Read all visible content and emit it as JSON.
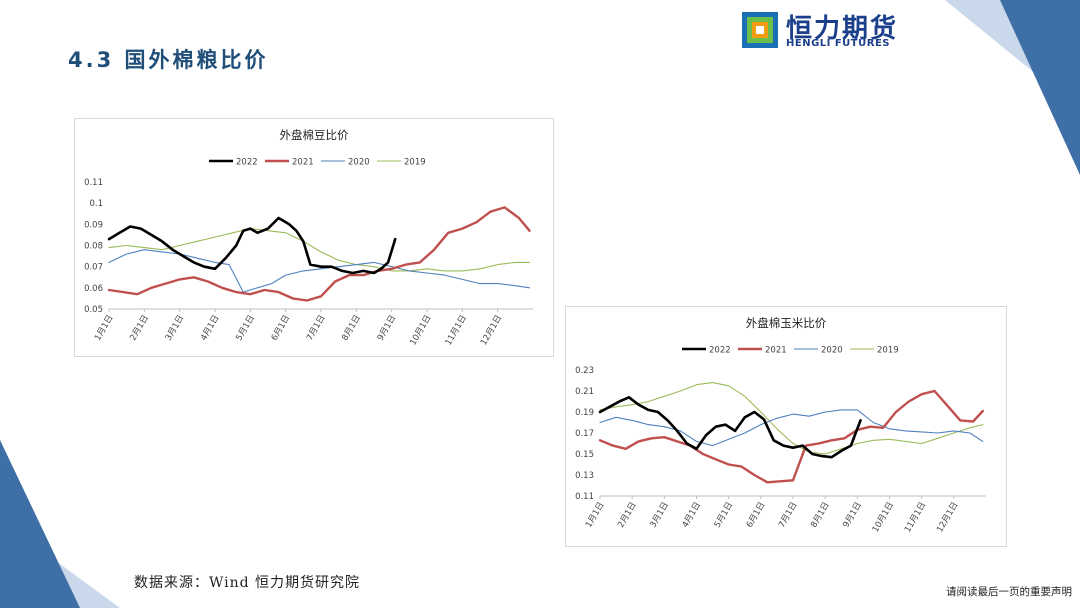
{
  "header": {
    "section_title": "4.3 国外棉粮比价",
    "logo_cn": "恒力期货",
    "logo_en": "HENGLI FUTURES"
  },
  "colors": {
    "brand_blue": "#1f4e79",
    "decor_blue": "#3e6fa6",
    "decor_light": "#c9d8ea",
    "series_2022": "#000000",
    "series_2021": "#c0504d",
    "series_2020": "#4f81bd",
    "series_2019": "#9bbb59"
  },
  "chart_data": [
    {
      "type": "line",
      "title": "外盘棉豆比价",
      "x_ticks": [
        "1月1日",
        "2月1日",
        "3月1日",
        "4月1日",
        "5月1日",
        "6月1日",
        "7月1日",
        "8月1日",
        "9月1日",
        "10月1日",
        "11月1日",
        "12月1日"
      ],
      "y_ticks": [
        "0.11",
        "0.1",
        "0.09",
        "0.08",
        "0.07",
        "0.06",
        "0.05"
      ],
      "ylim": [
        0.05,
        0.11
      ],
      "legend_position": "top",
      "x_unit": "month",
      "series": [
        {
          "name": "2022",
          "color": "#000000",
          "width": 2.6,
          "x": [
            0,
            0.3,
            0.6,
            0.9,
            1.2,
            1.5,
            1.8,
            2.1,
            2.4,
            2.7,
            3.0,
            3.3,
            3.6,
            3.8,
            4.0,
            4.2,
            4.5,
            4.8,
            5.1,
            5.3,
            5.5,
            5.7,
            6.0,
            6.3,
            6.6,
            6.9,
            7.2,
            7.5,
            7.7,
            7.9,
            8.1
          ],
          "y": [
            0.083,
            0.086,
            0.089,
            0.088,
            0.085,
            0.082,
            0.078,
            0.075,
            0.072,
            0.07,
            0.069,
            0.074,
            0.08,
            0.087,
            0.088,
            0.086,
            0.088,
            0.093,
            0.09,
            0.087,
            0.082,
            0.071,
            0.07,
            0.07,
            0.068,
            0.067,
            0.068,
            0.067,
            0.069,
            0.072,
            0.083
          ]
        },
        {
          "name": "2021",
          "color": "#c0504d",
          "width": 2.4,
          "x": [
            0,
            0.4,
            0.8,
            1.2,
            1.6,
            2.0,
            2.4,
            2.8,
            3.2,
            3.6,
            4.0,
            4.4,
            4.8,
            5.2,
            5.6,
            6.0,
            6.4,
            6.8,
            7.2,
            7.6,
            8.0,
            8.4,
            8.8,
            9.2,
            9.6,
            10.0,
            10.4,
            10.8,
            11.2,
            11.6,
            11.9
          ],
          "y": [
            0.059,
            0.058,
            0.057,
            0.06,
            0.062,
            0.064,
            0.065,
            0.063,
            0.06,
            0.058,
            0.057,
            0.059,
            0.058,
            0.055,
            0.054,
            0.056,
            0.063,
            0.066,
            0.066,
            0.068,
            0.069,
            0.071,
            0.072,
            0.078,
            0.086,
            0.088,
            0.091,
            0.096,
            0.098,
            0.093,
            0.087
          ]
        },
        {
          "name": "2020",
          "color": "#4f81bd",
          "width": 1.1,
          "x": [
            0,
            0.5,
            1.0,
            1.5,
            2.0,
            2.5,
            3.0,
            3.4,
            3.8,
            4.2,
            4.6,
            5.0,
            5.5,
            6.0,
            6.5,
            7.0,
            7.5,
            8.0,
            8.5,
            9.0,
            9.5,
            10.0,
            10.5,
            11.0,
            11.5,
            11.9
          ],
          "y": [
            0.072,
            0.076,
            0.078,
            0.077,
            0.076,
            0.074,
            0.072,
            0.071,
            0.058,
            0.06,
            0.062,
            0.066,
            0.068,
            0.069,
            0.07,
            0.071,
            0.072,
            0.07,
            0.068,
            0.067,
            0.066,
            0.064,
            0.062,
            0.062,
            0.061,
            0.06
          ]
        },
        {
          "name": "2019",
          "color": "#9bbb59",
          "width": 1.1,
          "x": [
            0,
            0.5,
            1.0,
            1.5,
            2.0,
            2.5,
            3.0,
            3.5,
            4.0,
            4.5,
            5.0,
            5.5,
            6.0,
            6.5,
            7.0,
            7.5,
            8.0,
            8.5,
            9.0,
            9.5,
            10.0,
            10.5,
            11.0,
            11.5,
            11.9
          ],
          "y": [
            0.079,
            0.08,
            0.079,
            0.078,
            0.08,
            0.082,
            0.084,
            0.086,
            0.088,
            0.087,
            0.086,
            0.082,
            0.077,
            0.073,
            0.071,
            0.07,
            0.068,
            0.068,
            0.069,
            0.068,
            0.068,
            0.069,
            0.071,
            0.072,
            0.072
          ]
        }
      ]
    },
    {
      "type": "line",
      "title": "外盘棉玉米比价",
      "x_ticks": [
        "1月1日",
        "2月1日",
        "3月1日",
        "4月1日",
        "5月1日",
        "6月1日",
        "7月1日",
        "8月1日",
        "9月1日",
        "10月1日",
        "11月1日",
        "12月1日"
      ],
      "y_ticks": [
        "0.23",
        "0.21",
        "0.19",
        "0.17",
        "0.15",
        "0.13",
        "0.11"
      ],
      "ylim": [
        0.11,
        0.23
      ],
      "legend_position": "top",
      "x_unit": "month",
      "series": [
        {
          "name": "2022",
          "color": "#000000",
          "width": 2.6,
          "x": [
            0,
            0.3,
            0.6,
            0.9,
            1.2,
            1.5,
            1.8,
            2.1,
            2.4,
            2.7,
            3.0,
            3.3,
            3.6,
            3.9,
            4.2,
            4.5,
            4.8,
            5.1,
            5.4,
            5.7,
            6.0,
            6.3,
            6.6,
            6.9,
            7.2,
            7.5,
            7.8,
            8.1
          ],
          "y": [
            0.19,
            0.195,
            0.2,
            0.204,
            0.197,
            0.192,
            0.19,
            0.182,
            0.172,
            0.16,
            0.155,
            0.168,
            0.176,
            0.178,
            0.172,
            0.185,
            0.19,
            0.183,
            0.163,
            0.158,
            0.156,
            0.158,
            0.15,
            0.148,
            0.147,
            0.153,
            0.158,
            0.182
          ]
        },
        {
          "name": "2021",
          "color": "#c0504d",
          "width": 2.4,
          "x": [
            0,
            0.4,
            0.8,
            1.2,
            1.6,
            2.0,
            2.4,
            2.8,
            3.2,
            3.6,
            4.0,
            4.4,
            4.8,
            5.2,
            5.6,
            6.0,
            6.4,
            6.8,
            7.2,
            7.6,
            8.0,
            8.4,
            8.8,
            9.2,
            9.6,
            10.0,
            10.4,
            10.8,
            11.2,
            11.6,
            11.9
          ],
          "y": [
            0.163,
            0.158,
            0.155,
            0.162,
            0.165,
            0.166,
            0.162,
            0.158,
            0.15,
            0.145,
            0.14,
            0.138,
            0.13,
            0.123,
            0.124,
            0.125,
            0.158,
            0.16,
            0.163,
            0.165,
            0.173,
            0.176,
            0.175,
            0.19,
            0.2,
            0.207,
            0.21,
            0.196,
            0.182,
            0.181,
            0.191
          ]
        },
        {
          "name": "2020",
          "color": "#4f81bd",
          "width": 1.1,
          "x": [
            0,
            0.5,
            1.0,
            1.5,
            2.0,
            2.5,
            3.0,
            3.5,
            4.0,
            4.5,
            5.0,
            5.5,
            6.0,
            6.5,
            7.0,
            7.5,
            8.0,
            8.5,
            9.0,
            9.5,
            10.0,
            10.5,
            11.0,
            11.5,
            11.9
          ],
          "y": [
            0.18,
            0.185,
            0.182,
            0.178,
            0.176,
            0.172,
            0.162,
            0.158,
            0.164,
            0.17,
            0.178,
            0.184,
            0.188,
            0.186,
            0.19,
            0.192,
            0.192,
            0.18,
            0.174,
            0.172,
            0.171,
            0.17,
            0.172,
            0.17,
            0.162
          ]
        },
        {
          "name": "2019",
          "color": "#9bbb59",
          "width": 1.1,
          "x": [
            0,
            0.5,
            1.0,
            1.5,
            2.0,
            2.5,
            3.0,
            3.5,
            4.0,
            4.5,
            5.0,
            5.5,
            6.0,
            6.5,
            7.0,
            7.5,
            8.0,
            8.5,
            9.0,
            9.5,
            10.0,
            10.5,
            11.0,
            11.5,
            11.9
          ],
          "y": [
            0.192,
            0.195,
            0.197,
            0.2,
            0.205,
            0.21,
            0.216,
            0.218,
            0.215,
            0.205,
            0.19,
            0.174,
            0.16,
            0.152,
            0.15,
            0.155,
            0.16,
            0.163,
            0.164,
            0.162,
            0.16,
            0.165,
            0.17,
            0.175,
            0.178
          ]
        }
      ]
    }
  ],
  "footer": {
    "source": "数据来源：Wind 恒力期货研究院",
    "disclaimer": "请阅读最后一页的重要声明"
  }
}
